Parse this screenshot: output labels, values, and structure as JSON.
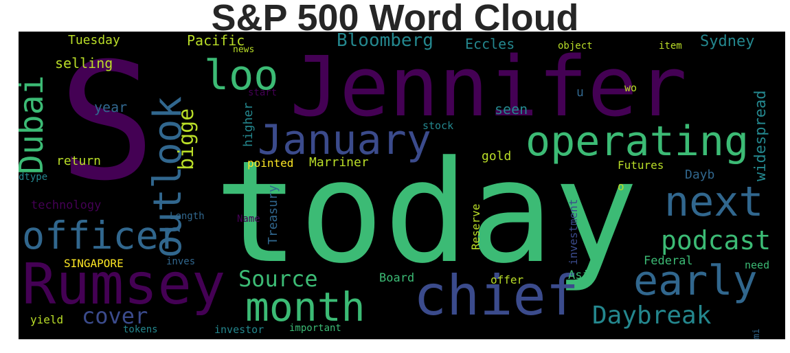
{
  "title": "S&P 500 Word Cloud",
  "colors": {
    "purple": "#440154",
    "indigo": "#3b4b8c",
    "slate": "#31678e",
    "teal": "#24878e",
    "green": "#3cbb75",
    "lime": "#bade28",
    "yellow": "#fde725"
  },
  "words": [
    {
      "text": "today"
    },
    {
      "text": "Jennifer"
    },
    {
      "text": "S"
    },
    {
      "text": "chief"
    },
    {
      "text": "Rumsey"
    },
    {
      "text": "operating"
    },
    {
      "text": "officer"
    },
    {
      "text": "month"
    },
    {
      "text": "next"
    },
    {
      "text": "January"
    },
    {
      "text": "early"
    },
    {
      "text": "outlook"
    },
    {
      "text": "loo"
    },
    {
      "text": "Dubai"
    },
    {
      "text": "podcast"
    },
    {
      "text": "Daybreak"
    },
    {
      "text": "Source"
    },
    {
      "text": "cover"
    },
    {
      "text": "bigge"
    },
    {
      "text": "Bloomberg"
    },
    {
      "text": "Sydney"
    },
    {
      "text": "Eccles"
    },
    {
      "text": "Pacific"
    },
    {
      "text": "Tuesday"
    },
    {
      "text": "selling"
    },
    {
      "text": "news"
    },
    {
      "text": "object"
    },
    {
      "text": "item"
    },
    {
      "text": "year"
    },
    {
      "text": "seen"
    },
    {
      "text": "stock"
    },
    {
      "text": "u"
    },
    {
      "text": "wo"
    },
    {
      "text": "start"
    },
    {
      "text": "higher"
    },
    {
      "text": "widespread"
    },
    {
      "text": "return"
    },
    {
      "text": "pointed"
    },
    {
      "text": "Marriner"
    },
    {
      "text": "gold"
    },
    {
      "text": "Futures"
    },
    {
      "text": "Dayb"
    },
    {
      "text": "dtype"
    },
    {
      "text": "technology"
    },
    {
      "text": "Treasury"
    },
    {
      "text": "Length"
    },
    {
      "text": "Name"
    },
    {
      "text": "Reserve"
    },
    {
      "text": "investment"
    },
    {
      "text": "o"
    },
    {
      "text": "SINGAPORE"
    },
    {
      "text": "inves"
    },
    {
      "text": "Federal"
    },
    {
      "text": "need"
    },
    {
      "text": "Asia"
    },
    {
      "text": "Board"
    },
    {
      "text": "offer"
    },
    {
      "text": "yield"
    },
    {
      "text": "tokens"
    },
    {
      "text": "investor"
    },
    {
      "text": "important"
    },
    {
      "text": "mi"
    }
  ]
}
